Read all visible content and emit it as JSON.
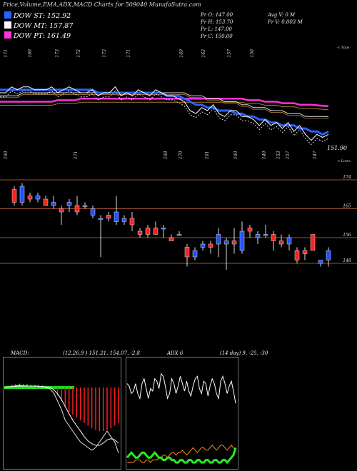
{
  "title": "Price,Volume,EMA,ADX,MACD Charts for 509040  MunafaSutra.com",
  "legend": [
    {
      "label": "DOW ST: 152.92",
      "color": "#2a62ff"
    },
    {
      "label": "DOW MT: 157.87",
      "color": "#ffffff"
    },
    {
      "label": "DOW PT: 161.49",
      "color": "#ff30d8"
    }
  ],
  "stats": {
    "open": "Pr   O: 147.00",
    "high": "Pr   H: 153.70",
    "low": "Pr   L: 147.00",
    "close": "Pr   C: 150.00",
    "avg_volume": "Avg V: 0   M",
    "volume": "Pr   V: 0.003 M"
  },
  "labels": {
    "tops": "< Tops",
    "lows": "< Lows",
    "last_price": "151.90",
    "macd_text": "MACD:",
    "macd_values": "(12,26,9 ) 151.21,  154.07, -2.8",
    "adx_text": "ADX        6",
    "adx_values": "(14  day) 9,  -25, -30"
  },
  "colors": {
    "ema_short": "#2a62ff",
    "ema_mid": "#ffffff",
    "ema_long": "#ff30d8",
    "candle_red": "#ff2020",
    "candle_blue": "#2050ff",
    "band_line": "#a05030"
  },
  "chart_data": [
    {
      "type": "line",
      "name": "price-ema-panel",
      "top_labels": [
        "171",
        "169",
        "173",
        "172",
        "173",
        "171",
        "169",
        "163",
        "157",
        "150"
      ],
      "low_labels": [
        "160",
        "171",
        "168",
        "170",
        "161",
        "160",
        "149",
        "153",
        "157",
        "147"
      ],
      "close": [
        166,
        166,
        168,
        167,
        168,
        168,
        167,
        167,
        167,
        168,
        166,
        167,
        168,
        167,
        166,
        166,
        167,
        165,
        166,
        166,
        168,
        165,
        166,
        165,
        167,
        166,
        165,
        167,
        166,
        165,
        165,
        164,
        163,
        160,
        159,
        161,
        160,
        162,
        159,
        158,
        160,
        160,
        158,
        158,
        157,
        155,
        157,
        155,
        156,
        154,
        156,
        153,
        155,
        152,
        150,
        152,
        151,
        152
      ],
      "ema_short": [
        167,
        167,
        167,
        167,
        167,
        167,
        167,
        167,
        167,
        167,
        167,
        167,
        167,
        167,
        167,
        167,
        167,
        166,
        166,
        166,
        166,
        166,
        166,
        166,
        166,
        166,
        166,
        166,
        166,
        165,
        165,
        165,
        164,
        163,
        162,
        162,
        161,
        161,
        160,
        160,
        160,
        159,
        159,
        158,
        158,
        157,
        157,
        156,
        156,
        155,
        155,
        155,
        154,
        154,
        153,
        153,
        152,
        152.9
      ],
      "ema_mid": [
        165,
        165,
        165,
        165,
        166,
        166,
        166,
        166,
        166,
        166,
        166,
        166,
        166,
        166,
        166,
        166,
        166,
        166,
        166,
        166,
        166,
        166,
        166,
        166,
        166,
        166,
        166,
        166,
        166,
        166,
        166,
        166,
        166,
        165,
        165,
        165,
        164,
        164,
        164,
        163,
        163,
        163,
        162,
        162,
        161,
        161,
        161,
        160,
        160,
        160,
        159,
        159,
        159,
        158,
        158,
        158,
        158,
        157.9
      ],
      "ema_long": [
        163,
        163,
        163,
        163,
        163,
        163,
        163,
        163,
        163,
        163,
        163.5,
        163.5,
        163.5,
        163.5,
        164,
        164,
        164,
        164,
        164,
        164,
        164,
        164,
        164,
        164,
        164,
        164,
        164,
        164,
        164,
        164,
        164,
        164,
        164,
        164,
        164,
        164,
        164,
        164,
        164,
        164,
        164,
        164,
        164,
        163.5,
        163.5,
        163.5,
        163,
        163,
        163,
        162.5,
        162.5,
        162.5,
        162,
        162,
        162,
        161.8,
        161.6,
        161.5
      ],
      "ylim": [
        148,
        172
      ]
    },
    {
      "type": "candlestick",
      "name": "candle-panel",
      "levels": [
        "174",
        "165",
        "156",
        "148"
      ],
      "candles": [
        {
          "o": 171,
          "h": 172,
          "l": 166,
          "c": 167
        },
        {
          "o": 167,
          "h": 173,
          "l": 166,
          "c": 172
        },
        {
          "o": 169,
          "h": 170,
          "l": 167,
          "c": 168
        },
        {
          "o": 168,
          "h": 170,
          "l": 167,
          "c": 169
        },
        {
          "o": 168,
          "h": 169,
          "l": 166,
          "c": 166
        },
        {
          "o": 166,
          "h": 169,
          "l": 165,
          "c": 167
        },
        {
          "o": 165,
          "h": 166,
          "l": 160,
          "c": 164
        },
        {
          "o": 166,
          "h": 168,
          "l": 164,
          "c": 167
        },
        {
          "o": 166,
          "h": 169,
          "l": 163,
          "c": 164
        },
        {
          "o": 166,
          "h": 167,
          "l": 165,
          "c": 166
        },
        {
          "o": 163,
          "h": 166,
          "l": 162,
          "c": 165
        },
        {
          "o": 162,
          "h": 163,
          "l": 150,
          "c": 162
        },
        {
          "o": 163,
          "h": 164,
          "l": 161,
          "c": 162
        },
        {
          "o": 161,
          "h": 169,
          "l": 160,
          "c": 164
        },
        {
          "o": 161,
          "h": 163,
          "l": 160,
          "c": 162
        },
        {
          "o": 162,
          "h": 164,
          "l": 158,
          "c": 160
        },
        {
          "o": 158,
          "h": 159,
          "l": 156,
          "c": 157
        },
        {
          "o": 159,
          "h": 160,
          "l": 156,
          "c": 157
        },
        {
          "o": 159,
          "h": 161,
          "l": 157,
          "c": 157
        },
        {
          "o": 159,
          "h": 160,
          "l": 156,
          "c": 159
        },
        {
          "o": 156,
          "h": 157,
          "l": 155,
          "c": 155
        },
        {
          "o": 157,
          "h": 158,
          "l": 157,
          "c": 157
        },
        {
          "o": 153,
          "h": 154,
          "l": 147,
          "c": 150
        },
        {
          "o": 150,
          "h": 153,
          "l": 149,
          "c": 152
        },
        {
          "o": 153,
          "h": 155,
          "l": 152,
          "c": 154
        },
        {
          "o": 154,
          "h": 155,
          "l": 151,
          "c": 153
        },
        {
          "o": 154,
          "h": 159,
          "l": 150,
          "c": 157
        },
        {
          "o": 154,
          "h": 156,
          "l": 146,
          "c": 155
        },
        {
          "o": 155,
          "h": 159,
          "l": 151,
          "c": 154
        },
        {
          "o": 152,
          "h": 161,
          "l": 151,
          "c": 158
        },
        {
          "o": 159,
          "h": 160,
          "l": 156,
          "c": 158
        },
        {
          "o": 156,
          "h": 158,
          "l": 154,
          "c": 157
        },
        {
          "o": 157,
          "h": 160,
          "l": 156,
          "c": 157
        },
        {
          "o": 157,
          "h": 158,
          "l": 152,
          "c": 155
        },
        {
          "o": 155,
          "h": 157,
          "l": 153,
          "c": 154
        },
        {
          "o": 154,
          "h": 157,
          "l": 152,
          "c": 156
        },
        {
          "o": 152,
          "h": 153,
          "l": 148,
          "c": 149
        },
        {
          "o": 152,
          "h": 153,
          "l": 149,
          "c": 151
        },
        {
          "o": 157,
          "h": 157,
          "l": 152,
          "c": 152
        },
        {
          "o": 148,
          "h": 149,
          "l": 147,
          "c": 149
        },
        {
          "o": 149,
          "h": 153,
          "l": 147,
          "c": 152
        }
      ],
      "ylim": [
        146,
        176
      ]
    },
    {
      "type": "bar",
      "name": "macd-panel",
      "histogram": [
        0,
        0.3,
        0.5,
        0.6,
        0.7,
        0.6,
        0.6,
        0.5,
        0.4,
        0.5,
        0.4,
        0.2,
        0,
        -0.5,
        -1.5,
        -2.5,
        -3.5,
        -4.5,
        -5,
        -5.5,
        -6,
        -6.5,
        -7,
        -7.5,
        -7.8,
        -8,
        -8,
        -7.8,
        -7.5,
        -7,
        -6.5
      ],
      "macd": [
        0,
        0.1,
        0.2,
        0.3,
        0.4,
        0.3,
        0.3,
        0.2,
        0.3,
        0.2,
        0.1,
        0,
        -0.3,
        -1,
        -2.5,
        -4,
        -6,
        -7,
        -8,
        -9,
        -10,
        -10.5,
        -11,
        -11.5,
        -11,
        -10,
        -9,
        -8,
        -9,
        -10,
        -12
      ],
      "signal": [
        0,
        0.1,
        0.15,
        0.2,
        0.25,
        0.25,
        0.25,
        0.25,
        0.25,
        0.2,
        0.15,
        0.1,
        0,
        -0.4,
        -1.2,
        -2.2,
        -3.5,
        -4.8,
        -6,
        -7,
        -8,
        -9,
        -9.8,
        -10.3,
        -10.6,
        -10.6,
        -10.2,
        -9.6,
        -9.4,
        -9.6,
        -10.2
      ],
      "ylim": [
        -14,
        3
      ]
    },
    {
      "type": "line",
      "name": "adx-panel",
      "adx": [
        34,
        33,
        30,
        31,
        34,
        30,
        28,
        34,
        36,
        32,
        28,
        32,
        31,
        36,
        35,
        32,
        38,
        37,
        33,
        28,
        30,
        36,
        34,
        30,
        33,
        37,
        34,
        31,
        35,
        31,
        29,
        33,
        36,
        37,
        32,
        30,
        35,
        34,
        29,
        33,
        36,
        34,
        30,
        28,
        35,
        37,
        34,
        30,
        33,
        35,
        31,
        26
      ],
      "plus_di": [
        4,
        5,
        6,
        5,
        4,
        4,
        5,
        6,
        6,
        5,
        4,
        4,
        5,
        6,
        5,
        4,
        4,
        3,
        3,
        4,
        4,
        3,
        3,
        2,
        2,
        3,
        3,
        2,
        2,
        3,
        3,
        2,
        2,
        3,
        3,
        2,
        2,
        3,
        3,
        2,
        2,
        3,
        3,
        2,
        2,
        3,
        3,
        2,
        3,
        4,
        5,
        8
      ],
      "minus_di": [
        2,
        2,
        2,
        2,
        3,
        3,
        3,
        2,
        2,
        3,
        3,
        2,
        3,
        3,
        3,
        4,
        4,
        5,
        5,
        4,
        5,
        6,
        6,
        5,
        6,
        6,
        7,
        6,
        5,
        6,
        7,
        8,
        7,
        6,
        7,
        8,
        8,
        7,
        7,
        8,
        9,
        8,
        7,
        8,
        9,
        9,
        8,
        7,
        8,
        9,
        8,
        7
      ],
      "ylim": [
        0,
        42
      ]
    }
  ]
}
